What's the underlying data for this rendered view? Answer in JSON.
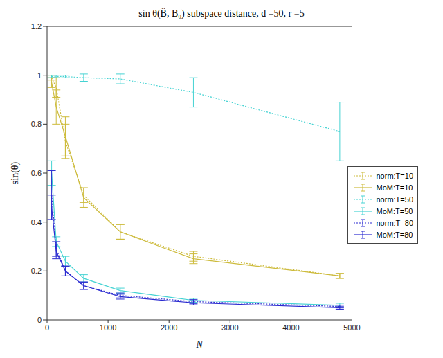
{
  "chart_data": {
    "type": "line",
    "title": "sin θ(B̂, B₀) subspace distance, d =50, r =5",
    "x_label": "N",
    "y_label": "sin(θ)",
    "x": [
      75,
      150,
      300,
      600,
      1200,
      2400,
      4800
    ],
    "xlim": [
      0,
      5000
    ],
    "xticks": [
      0,
      1000,
      2000,
      3000,
      4000,
      5000
    ],
    "ylim": [
      0,
      1.2
    ],
    "yticks": [
      0,
      0.2,
      0.4,
      0.6,
      0.8,
      1,
      1.2
    ],
    "grid": false,
    "legend": "right",
    "series": [
      {
        "name": "norm:T=10",
        "color": "#cdbb3c",
        "line_style": "dotted",
        "values": [
          0.99,
          0.95,
          0.73,
          0.51,
          0.36,
          0.26,
          0.18
        ],
        "errors": [
          0.01,
          0.04,
          0.07,
          0.03,
          0.03,
          0.02,
          0.01
        ]
      },
      {
        "name": "MoM:T=10",
        "color": "#cdbb3c",
        "line_style": "solid",
        "values": [
          0.97,
          0.87,
          0.75,
          0.5,
          0.36,
          0.25,
          0.18
        ],
        "errors": [
          0.02,
          0.07,
          0.08,
          0.04,
          0.03,
          0.02,
          0.01
        ]
      },
      {
        "name": "norm:T=50",
        "color": "#45d3d3",
        "line_style": "dotted",
        "values": [
          0.995,
          0.995,
          0.995,
          0.99,
          0.985,
          0.93,
          0.77
        ],
        "errors": [
          0.005,
          0.005,
          0.005,
          0.015,
          0.02,
          0.06,
          0.12
        ]
      },
      {
        "name": "MoM:T=50",
        "color": "#45d3d3",
        "line_style": "solid",
        "values": [
          0.6,
          0.32,
          0.24,
          0.17,
          0.12,
          0.08,
          0.06
        ],
        "errors": [
          0.05,
          0.02,
          0.02,
          0.015,
          0.01,
          0.008,
          0.008
        ]
      },
      {
        "name": "norm:T=80",
        "color": "#2b2bd0",
        "line_style": "dotted",
        "values": [
          0.51,
          0.29,
          0.2,
          0.14,
          0.1,
          0.075,
          0.055
        ],
        "errors": [
          0.1,
          0.03,
          0.02,
          0.015,
          0.01,
          0.008,
          0.006
        ]
      },
      {
        "name": "MoM:T=80",
        "color": "#2b2bd0",
        "line_style": "solid",
        "values": [
          0.46,
          0.28,
          0.2,
          0.14,
          0.095,
          0.07,
          0.05
        ],
        "errors": [
          0.05,
          0.03,
          0.02,
          0.015,
          0.01,
          0.008,
          0.006
        ]
      }
    ]
  }
}
